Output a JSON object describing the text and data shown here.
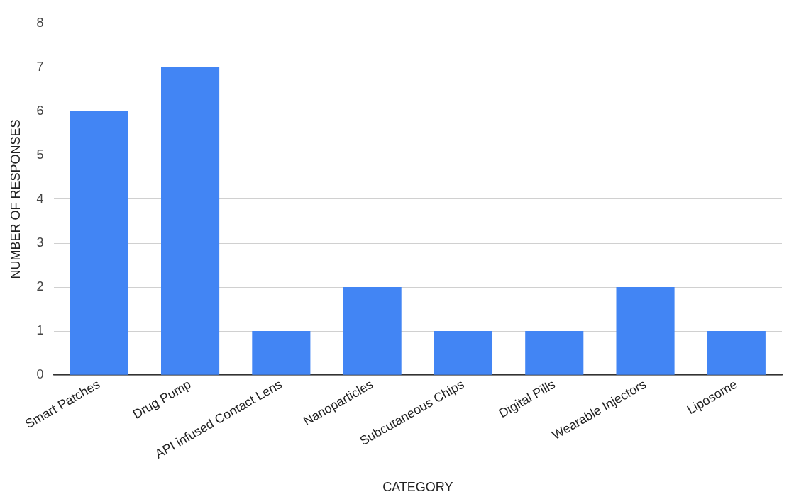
{
  "chart_data": {
    "type": "bar",
    "xlabel": "CATEGORY",
    "ylabel": "NUMBER OF RESPONSES",
    "categories": [
      "Smart Patches",
      "Drug Pump",
      "API infused Contact Lens",
      "Nanoparticles",
      "Subcutaneous Chips",
      "Digital Pills",
      "Wearable Injectors",
      "Liposome"
    ],
    "values": [
      6,
      7,
      1,
      2,
      1,
      1,
      2,
      1
    ],
    "color": "#4285f4",
    "ylim": [
      0,
      8
    ],
    "yticks": [
      0,
      1,
      2,
      3,
      4,
      5,
      6,
      7,
      8
    ],
    "grid": "y",
    "legend": false
  }
}
